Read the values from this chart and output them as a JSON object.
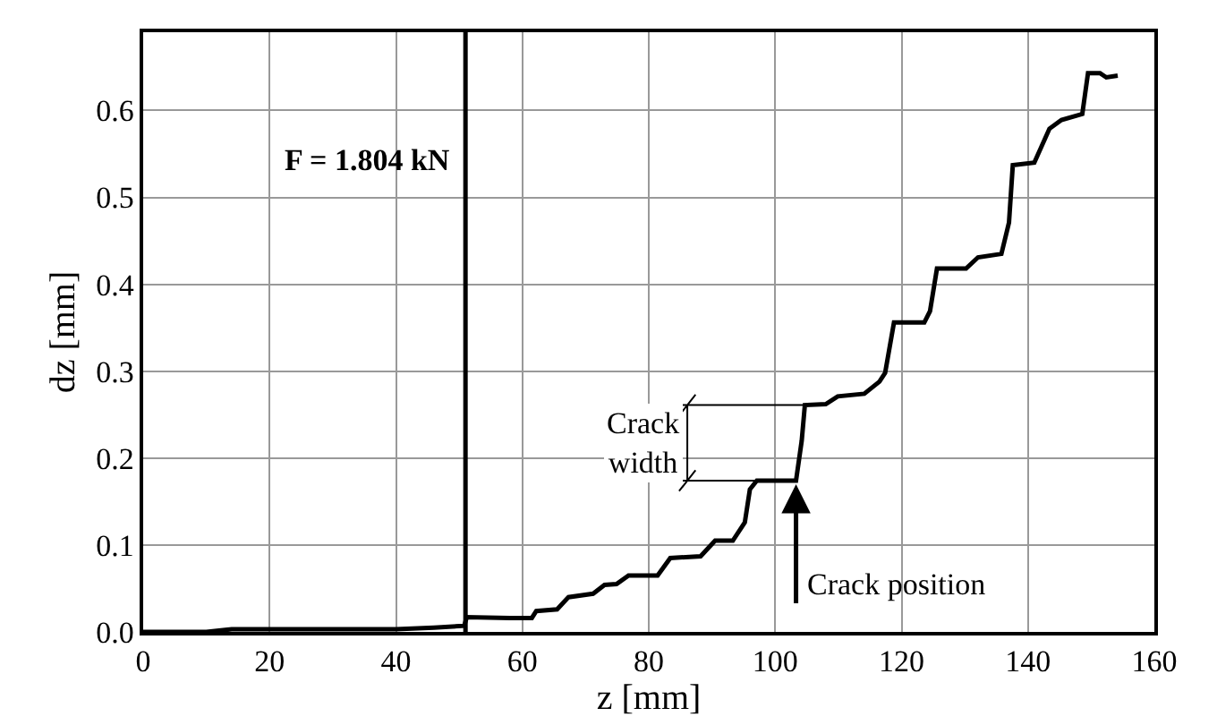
{
  "chart_data": {
    "type": "line",
    "xlabel": "z [mm]",
    "ylabel": "dz [mm]",
    "xlim": [
      0,
      160
    ],
    "xticks": [
      0,
      20,
      40,
      60,
      80,
      100,
      120,
      140,
      160
    ],
    "ylim": [
      0,
      0.69
    ],
    "yticks": [
      {
        "value": 0,
        "label": "0.0"
      },
      {
        "value": 0.1,
        "label": "0.1"
      },
      {
        "value": 0.2,
        "label": "0.2"
      },
      {
        "value": 0.3,
        "label": "0.3"
      },
      {
        "value": 0.4,
        "label": "0.4"
      },
      {
        "value": 0.5,
        "label": "0.5"
      },
      {
        "value": 0.6,
        "label": "0.6"
      }
    ],
    "grid": true,
    "marker": "none",
    "line_style": "solid",
    "series": [
      {
        "color": "#000000",
        "x": [
          0,
          10,
          14,
          30,
          40,
          46,
          50.8,
          51.2,
          58,
          61.5,
          62.2,
          65.5,
          67.3,
          71.2,
          73.0,
          74.9,
          76.8,
          81.4,
          83.4,
          88.2,
          90.5,
          93.3,
          95.2,
          96.0,
          97.1,
          103.3,
          104.2,
          104.7,
          108.0,
          109.9,
          114.1,
          116.5,
          117.4,
          118.8,
          123.6,
          124.5,
          125.6,
          130.2,
          132.1,
          135.8,
          137.0,
          137.6,
          141.0,
          143.4,
          145.3,
          148.6,
          149.5,
          151.4,
          152.4,
          154.2
        ],
        "values": [
          0,
          0,
          0.003,
          0.003,
          0.003,
          0.005,
          0.007,
          0.017,
          0.016,
          0.016,
          0.024,
          0.026,
          0.04,
          0.044,
          0.054,
          0.055,
          0.065,
          0.065,
          0.085,
          0.087,
          0.105,
          0.105,
          0.126,
          0.164,
          0.174,
          0.174,
          0.22,
          0.261,
          0.262,
          0.271,
          0.274,
          0.288,
          0.298,
          0.356,
          0.356,
          0.369,
          0.418,
          0.418,
          0.431,
          0.435,
          0.471,
          0.537,
          0.54,
          0.579,
          0.589,
          0.596,
          0.643,
          0.643,
          0.638,
          0.64
        ]
      }
    ],
    "ref_lines": [
      {
        "axis": "x",
        "value": 51,
        "color": "#000000"
      }
    ],
    "bands": [
      {
        "axis": "y",
        "from": 0.174,
        "to": 0.261,
        "label": "Crack\nwidth"
      }
    ],
    "annotations": [
      "F = 1.804 kN",
      {
        "text": "Crack position",
        "x": 103.3,
        "y": 0.174
      }
    ]
  }
}
